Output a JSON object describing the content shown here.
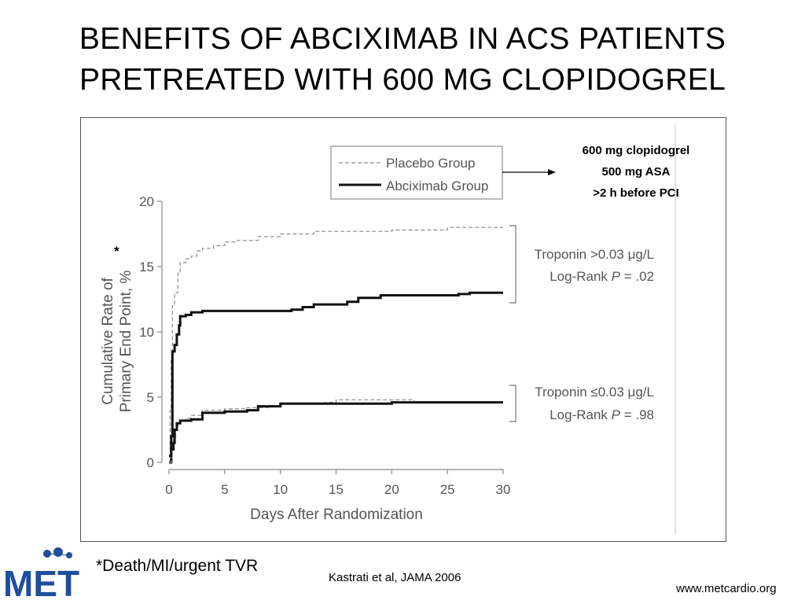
{
  "slide": {
    "title_line1": "BENEFITS OF ABCIXIMAB IN ACS PATIENTS",
    "title_line2": "PRETREATED WITH 600 MG CLOPIDOGREL",
    "footnote": "*Death/MI/urgent TVR",
    "citation": "Kastrati et al, JAMA 2006",
    "website": "www.metcardio.org",
    "logo_text": "MET",
    "treatment_note": [
      "600 mg clopidogrel",
      "500 mg ASA",
      ">2 h before PCI"
    ],
    "colors": {
      "placebo": "#8a8a8a",
      "abciximab": "#111111",
      "logo_blue": "#1f4e9c",
      "logo_dark": "#0b2a5c"
    }
  },
  "chart_data": {
    "type": "line",
    "xlabel": "Days After Randomization",
    "ylabel_line1": "Cumulative Rate of",
    "ylabel_line2": "Primary End Point, %",
    "ylabel_marker": "*",
    "xlim": [
      0,
      30
    ],
    "ylim": [
      0,
      20
    ],
    "xticks": [
      0,
      5,
      10,
      15,
      20,
      25,
      30
    ],
    "yticks": [
      0,
      5,
      10,
      15,
      20
    ],
    "legend": {
      "position": "top",
      "entries": [
        {
          "label": "Placebo Group",
          "style": "dashed"
        },
        {
          "label": "Abciximab Group",
          "style": "solid"
        }
      ]
    },
    "groups": [
      {
        "label_line1": "Troponin >0.03 μg/L",
        "label_line2_prefix": "Log-Rank ",
        "label_line2_p": "P",
        "label_line2_value": " = .02"
      },
      {
        "label_line1": "Troponin ≤0.03 μg/L",
        "label_line2_prefix": "Log-Rank ",
        "label_line2_p": "P",
        "label_line2_value": " = .98"
      }
    ],
    "series": [
      {
        "name": "Placebo Group",
        "group": "Troponin >0.03 μg/L",
        "style": "dashed",
        "points": [
          [
            0,
            0
          ],
          [
            0.1,
            4
          ],
          [
            0.2,
            8
          ],
          [
            0.3,
            12
          ],
          [
            0.5,
            13
          ],
          [
            0.8,
            14.5
          ],
          [
            1,
            15.3
          ],
          [
            1.5,
            15.6
          ],
          [
            2,
            15.8
          ],
          [
            2.5,
            16.2
          ],
          [
            3,
            16.4
          ],
          [
            4,
            16.6
          ],
          [
            5,
            16.9
          ],
          [
            6,
            17
          ],
          [
            8,
            17.3
          ],
          [
            10,
            17.5
          ],
          [
            13,
            17.7
          ],
          [
            20,
            17.8
          ],
          [
            24,
            17.8
          ],
          [
            25,
            18
          ],
          [
            30,
            18
          ]
        ]
      },
      {
        "name": "Abciximab Group",
        "group": "Troponin >0.03 μg/L",
        "style": "solid",
        "points": [
          [
            0,
            0
          ],
          [
            0.2,
            2
          ],
          [
            0.3,
            8.5
          ],
          [
            0.5,
            9
          ],
          [
            0.7,
            9.8
          ],
          [
            0.9,
            10.5
          ],
          [
            1,
            11.2
          ],
          [
            1.5,
            11.3
          ],
          [
            2,
            11.5
          ],
          [
            3,
            11.6
          ],
          [
            5,
            11.6
          ],
          [
            10,
            11.6
          ],
          [
            11,
            11.7
          ],
          [
            12,
            11.9
          ],
          [
            13,
            12.1
          ],
          [
            16,
            12.3
          ],
          [
            17,
            12.6
          ],
          [
            19,
            12.8
          ],
          [
            26,
            12.9
          ],
          [
            27,
            13
          ],
          [
            30,
            13
          ]
        ]
      },
      {
        "name": "Placebo Group",
        "group": "Troponin ≤0.03 μg/L",
        "style": "dashed",
        "points": [
          [
            0,
            0
          ],
          [
            0.2,
            1
          ],
          [
            0.4,
            2
          ],
          [
            0.6,
            2.5
          ],
          [
            0.8,
            3
          ],
          [
            1,
            3.2
          ],
          [
            1.5,
            3.4
          ],
          [
            2,
            3.6
          ],
          [
            3,
            4
          ],
          [
            5,
            4.1
          ],
          [
            7,
            4.2
          ],
          [
            9,
            4.3
          ],
          [
            10,
            4.5
          ],
          [
            14,
            4.6
          ],
          [
            15,
            4.8
          ],
          [
            21,
            4.8
          ],
          [
            22,
            4.6
          ],
          [
            30,
            4.6
          ]
        ]
      },
      {
        "name": "Abciximab Group",
        "group": "Troponin ≤0.03 μg/L",
        "style": "solid",
        "points": [
          [
            0,
            0.5
          ],
          [
            0.2,
            1
          ],
          [
            0.4,
            1.5
          ],
          [
            0.5,
            2.5
          ],
          [
            0.7,
            3
          ],
          [
            1,
            3.2
          ],
          [
            2,
            3.3
          ],
          [
            3,
            3.8
          ],
          [
            5,
            3.9
          ],
          [
            7,
            4
          ],
          [
            8,
            4.3
          ],
          [
            10,
            4.5
          ],
          [
            15,
            4.5
          ],
          [
            20,
            4.6
          ],
          [
            30,
            4.6
          ]
        ]
      }
    ]
  }
}
